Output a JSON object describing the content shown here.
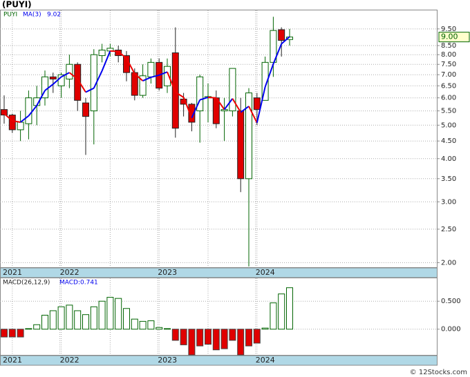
{
  "title": "(PUYI)",
  "footer": "© 12Stocks.com",
  "chart_data": [
    {
      "type": "candlestick",
      "legend": "PUYI",
      "categories": [
        "2021",
        null,
        null,
        null,
        null,
        null,
        null,
        "2022",
        null,
        null,
        null,
        null,
        null,
        null,
        null,
        null,
        null,
        null,
        null,
        "2023",
        null,
        null,
        null,
        null,
        null,
        null,
        null,
        null,
        null,
        null,
        null,
        "2024",
        null,
        null,
        null,
        null
      ],
      "open": [
        5.55,
        5.35,
        4.85,
        5.05,
        5.7,
        6.0,
        6.9,
        6.5,
        6.8,
        7.5,
        5.8,
        5.5,
        7.95,
        8.2,
        8.25,
        7.95,
        7.1,
        6.1,
        6.9,
        7.6,
        6.5,
        8.1,
        5.95,
        5.75,
        5.5,
        6.0,
        6.0,
        5.5,
        5.5,
        5.5,
        3.5,
        6.0,
        5.9,
        7.6,
        9.45,
        8.85
      ],
      "high": [
        6.1,
        5.4,
        5.5,
        6.3,
        6.5,
        7.2,
        7.1,
        7.1,
        8.0,
        7.6,
        6.0,
        8.3,
        8.6,
        8.6,
        8.5,
        8.2,
        7.3,
        7.5,
        7.8,
        7.8,
        7.8,
        9.6,
        6.2,
        5.8,
        7.0,
        6.6,
        6.3,
        6.0,
        7.3,
        6.0,
        6.4,
        6.2,
        7.9,
        10.3,
        9.6,
        9.5
      ],
      "low": [
        5.05,
        4.75,
        4.5,
        4.55,
        5.0,
        5.7,
        6.2,
        6.0,
        6.4,
        5.5,
        4.1,
        4.4,
        7.6,
        7.9,
        7.6,
        6.7,
        5.9,
        6.0,
        6.6,
        6.3,
        6.2,
        4.6,
        5.3,
        4.8,
        4.45,
        5.1,
        4.9,
        4.5,
        5.3,
        3.2,
        1.95,
        5.0,
        5.9,
        6.9,
        7.9,
        8.5
      ],
      "close": [
        5.35,
        4.85,
        5.1,
        6.0,
        6.0,
        6.9,
        6.8,
        7.0,
        7.5,
        5.9,
        5.3,
        8.0,
        8.25,
        8.35,
        7.95,
        7.1,
        6.1,
        6.95,
        7.6,
        6.4,
        7.4,
        4.9,
        5.75,
        5.1,
        6.9,
        6.05,
        5.05,
        5.55,
        7.3,
        3.5,
        6.2,
        5.55,
        7.6,
        9.4,
        8.8,
        9.0
      ],
      "up_color": "#006400",
      "down_color": "#e00000",
      "overlay": {
        "name": "MA(3)",
        "current": 9.02,
        "rise_color": "#0000ee",
        "fall_color": "#ee0000",
        "values": [
          5.4,
          5.15,
          5.1,
          5.32,
          5.7,
          6.3,
          6.57,
          6.9,
          7.1,
          6.8,
          6.23,
          6.4,
          7.18,
          8.2,
          8.18,
          7.8,
          7.05,
          6.72,
          6.88,
          6.98,
          7.13,
          6.23,
          6.02,
          5.25,
          5.92,
          6.02,
          6.0,
          5.55,
          5.97,
          5.45,
          5.67,
          5.08,
          6.45,
          7.52,
          8.6,
          9.02
        ]
      },
      "last_price": {
        "value": 9.0,
        "label": "9.00"
      },
      "log_scale": true,
      "grid": true,
      "ylim": [
        1.94,
        10.75
      ],
      "yticks": [
        {
          "value": 2.0,
          "label": "2.00"
        },
        {
          "value": 2.5,
          "label": "2.50"
        },
        {
          "value": 3.0,
          "label": "3.00"
        },
        {
          "value": 3.5,
          "label": "3.50"
        },
        {
          "value": 4.0,
          "label": "4.00"
        },
        {
          "value": 4.5,
          "label": "4.50"
        },
        {
          "value": 5.0,
          "label": "5.00"
        },
        {
          "value": 5.5,
          "label": "5.50"
        },
        {
          "value": 6.0,
          "label": "6.00"
        },
        {
          "value": 6.5,
          "label": "6.50"
        },
        {
          "value": 7.0,
          "label": "7.00"
        },
        {
          "value": 7.5,
          "label": "7.50"
        },
        {
          "value": 8.0,
          "label": "8.00"
        },
        {
          "value": 8.5,
          "label": "8.50"
        },
        {
          "value": 9.5,
          "label": "9.50"
        }
      ]
    },
    {
      "type": "bar",
      "legend": "MACD(26,12,9)",
      "current_label": "MACD:0.741",
      "categories": [
        "2021",
        null,
        null,
        null,
        null,
        null,
        null,
        "2022",
        null,
        null,
        null,
        null,
        null,
        null,
        null,
        null,
        null,
        null,
        null,
        "2023",
        null,
        null,
        null,
        null,
        null,
        null,
        null,
        null,
        null,
        null,
        null,
        "2024",
        null,
        null,
        null,
        null
      ],
      "values": [
        -0.14,
        -0.14,
        -0.14,
        0.01,
        0.08,
        0.25,
        0.33,
        0.4,
        0.43,
        0.33,
        0.26,
        0.4,
        0.5,
        0.57,
        0.55,
        0.37,
        0.18,
        0.14,
        0.15,
        0.03,
        0.01,
        -0.2,
        -0.28,
        -0.46,
        -0.3,
        -0.27,
        -0.37,
        -0.35,
        -0.2,
        -0.46,
        -0.3,
        -0.25,
        0.02,
        0.47,
        0.63,
        0.741
      ],
      "up_color": "#006400",
      "down_color": "#e00000",
      "grid": true,
      "ylim": [
        -0.46,
        0.91
      ],
      "yticks": [
        {
          "value": 0.0,
          "label": "0.000"
        },
        {
          "value": 0.5,
          "label": "0.500"
        }
      ]
    }
  ]
}
